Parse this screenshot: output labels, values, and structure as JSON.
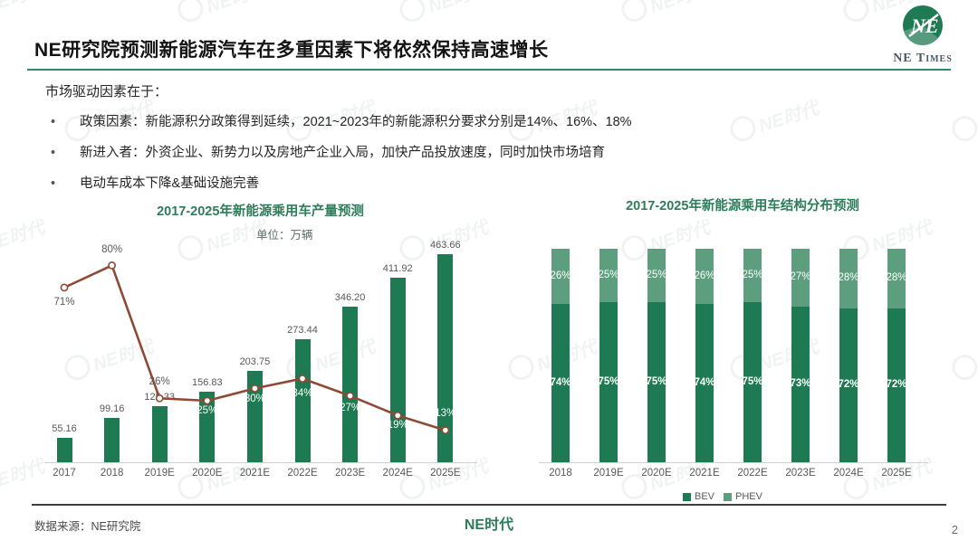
{
  "header": {
    "title": "NE研究院预测新能源汽车在多重因素下将依然保持高速增长",
    "logo_monogram": "NE",
    "logo_caption": "NE Times"
  },
  "intro": {
    "heading": "市场驱动因素在于：",
    "bullets": [
      "政策因素：新能源积分政策得到延续，2021~2023年的新能源积分要求分别是14%、16%、18%",
      "新进入者：外资企业、新势力以及房地产企业入局，加快产品投放速度，同时加快市场培育",
      "电动车成本下降&基础设施完善"
    ]
  },
  "chart_data": [
    {
      "type": "bar",
      "combo": "bar-with-line",
      "title": "2017-2025年新能源乘用车产量预测",
      "unit_label": "单位：万辆",
      "categories": [
        "2017",
        "2018",
        "2019E",
        "2020E",
        "2021E",
        "2022E",
        "2023E",
        "2024E",
        "2025E"
      ],
      "values": [
        55.16,
        99.16,
        125.33,
        156.83,
        203.75,
        273.44,
        346.2,
        411.92,
        463.66
      ],
      "bar_value_labels": [
        "55.16",
        "99.16",
        "125.33",
        "156.83",
        "203.75",
        "273.44",
        "346.20",
        "411.92",
        "463.66"
      ],
      "line_series": {
        "values": [
          71,
          80,
          26,
          25,
          30,
          34,
          27,
          19,
          13
        ],
        "labels": [
          "71%",
          "80%",
          "26%",
          "25%",
          "30%",
          "34%",
          "27%",
          "19%",
          "13%"
        ],
        "label_dy": [
          17,
          -16,
          -17,
          12,
          13,
          17,
          14,
          12,
          -18
        ],
        "label_on_bar": [
          false,
          false,
          false,
          true,
          true,
          true,
          true,
          true,
          true
        ]
      },
      "ylim": [
        0,
        470
      ],
      "grid": false,
      "legend_position": "none"
    },
    {
      "type": "bar",
      "stacked": true,
      "title": "2017-2025年新能源乘用车结构分布预测",
      "categories": [
        "2018",
        "2019E",
        "2020E",
        "2021E",
        "2022E",
        "2023E",
        "2024E",
        "2025E"
      ],
      "series": [
        {
          "name": "BEV",
          "values": [
            74,
            75,
            75,
            74,
            75,
            73,
            72,
            72
          ],
          "labels": [
            "74%",
            "75%",
            "75%",
            "74%",
            "75%",
            "73%",
            "72%",
            "72%"
          ]
        },
        {
          "name": "PHEV",
          "values": [
            26,
            25,
            25,
            26,
            25,
            27,
            28,
            28
          ],
          "labels": [
            "26%",
            "25%",
            "25%",
            "26%",
            "25%",
            "27%",
            "28%",
            "28%"
          ]
        }
      ],
      "ylim": [
        0,
        100
      ],
      "grid": false,
      "legend_position": "bottom"
    }
  ],
  "footer": {
    "source": "数据来源：NE研究院",
    "brand": "NE时代",
    "page": "2"
  },
  "watermark": "NE时代",
  "colors": {
    "bar_green": "#1d7a52",
    "phev_green": "#5d9e7f",
    "line_brown": "#8e4a35",
    "title_green": "#2e7d5a",
    "divider_green": "#2e8b6a",
    "label_gray": "#595959"
  }
}
